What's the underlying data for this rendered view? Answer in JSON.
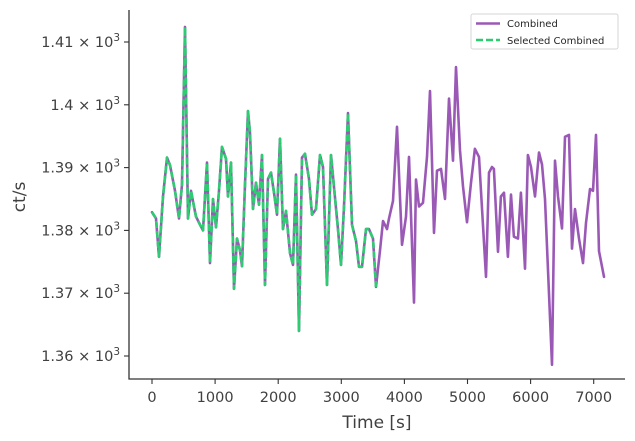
{
  "chart_data": {
    "type": "line",
    "title": "",
    "xlabel": "Time [s]",
    "ylabel": "ct/s",
    "xlim": [
      -370,
      7500
    ],
    "ylim": [
      1356.9,
      1415.6
    ],
    "yscale": "log",
    "grid": false,
    "legend_position": "upper right",
    "x_ticks": [
      0,
      1000,
      2000,
      3000,
      4000,
      5000,
      6000,
      7000
    ],
    "x_tick_labels": [
      "0",
      "1000",
      "2000",
      "3000",
      "4000",
      "5000",
      "6000",
      "7000"
    ],
    "y_ticks": [
      1360,
      1370,
      1380,
      1390,
      1400,
      1410
    ],
    "y_tick_labels": [
      {
        "mantissa": "1.36",
        "exp": "3"
      },
      {
        "mantissa": "1.37",
        "exp": "3"
      },
      {
        "mantissa": "1.38",
        "exp": "3"
      },
      {
        "mantissa": "1.39",
        "exp": "3"
      },
      {
        "mantissa": "1.4",
        "exp": "3"
      },
      {
        "mantissa": "1.41",
        "exp": "3"
      }
    ],
    "series": [
      {
        "name": "Combined",
        "color": "#9b59b6",
        "style": "solid",
        "x": [
          0,
          63,
          111,
          174,
          238,
          285,
          364,
          428,
          475,
          523,
          571,
          618,
          666,
          697,
          760,
          808,
          872,
          919,
          967,
          1014,
          1062,
          1109,
          1173,
          1204,
          1252,
          1300,
          1347,
          1395,
          1426,
          1474,
          1521,
          1553,
          1601,
          1648,
          1696,
          1743,
          1791,
          1838,
          1886,
          1933,
          1981,
          2029,
          2076,
          2124,
          2187,
          2235,
          2282,
          2330,
          2377,
          2425,
          2488,
          2536,
          2599,
          2662,
          2710,
          2773,
          2837,
          2884,
          2948,
          2995,
          3043,
          3106,
          3170,
          3233,
          3280,
          3328,
          3391,
          3439,
          3502,
          3550,
          3613,
          3661,
          3724,
          3756,
          3819,
          3883,
          3962,
          4025,
          4073,
          4152,
          4184,
          4231,
          4295,
          4358,
          4406,
          4469,
          4516,
          4580,
          4643,
          4707,
          4770,
          4818,
          4881,
          4929,
          4992,
          5055,
          5118,
          5182,
          5293,
          5340,
          5388,
          5419,
          5483,
          5530,
          5578,
          5641,
          5689,
          5736,
          5800,
          5847,
          5911,
          5958,
          6006,
          6069,
          6133,
          6180,
          6228,
          6339,
          6387,
          6434,
          6497,
          6545,
          6608,
          6656,
          6703,
          6767,
          6830,
          6878,
          6941,
          6989,
          7036,
          7084,
          7163
        ],
        "y": [
          1382.9,
          1381.9,
          1375.8,
          1385.4,
          1391.6,
          1390.4,
          1386.3,
          1381.9,
          1387.3,
          1412.4,
          1381.9,
          1386.3,
          1383.8,
          1382.2,
          1380.9,
          1380.0,
          1390.8,
          1374.8,
          1385.0,
          1380.5,
          1386.3,
          1393.3,
          1391.4,
          1385.4,
          1390.8,
          1370.7,
          1378.7,
          1376.8,
          1374.3,
          1387.3,
          1399.0,
          1395.5,
          1383.4,
          1387.6,
          1384.1,
          1392.0,
          1371.3,
          1388.2,
          1389.2,
          1386.0,
          1382.5,
          1394.6,
          1380.2,
          1383.1,
          1376.4,
          1374.5,
          1388.9,
          1364.0,
          1391.6,
          1392.2,
          1388.2,
          1382.5,
          1383.4,
          1392.0,
          1390.1,
          1371.3,
          1392.0,
          1386.9,
          1380.2,
          1374.5,
          1383.8,
          1398.7,
          1380.9,
          1378.3,
          1374.2,
          1374.2,
          1380.2,
          1380.2,
          1378.7,
          1371.0,
          1376.8,
          1381.5,
          1380.2,
          1381.9,
          1384.7,
          1396.5,
          1377.7,
          1382.2,
          1391.7,
          1368.5,
          1388.1,
          1383.8,
          1384.4,
          1391.7,
          1402.2,
          1379.6,
          1389.5,
          1389.8,
          1385.0,
          1401.0,
          1391.1,
          1406.0,
          1392.7,
          1387.0,
          1381.3,
          1387.6,
          1393.0,
          1391.7,
          1372.6,
          1389.2,
          1390.1,
          1389.8,
          1376.6,
          1385.4,
          1386.0,
          1375.8,
          1385.7,
          1379.0,
          1378.7,
          1386.0,
          1373.9,
          1392.0,
          1390.1,
          1385.4,
          1392.4,
          1390.5,
          1385.0,
          1358.6,
          1391.1,
          1385.4,
          1380.3,
          1394.9,
          1395.2,
          1377.1,
          1383.4,
          1378.7,
          1374.8,
          1381.2,
          1386.6,
          1386.3,
          1395.2,
          1376.7,
          1372.6
        ]
      },
      {
        "name": "Selected Combined",
        "color": "#2ecc71",
        "style": "dashed",
        "x_range": [
          0,
          3550
        ]
      }
    ]
  },
  "legend": {
    "items": [
      {
        "label": "Combined",
        "color": "#9b59b6",
        "style": "solid"
      },
      {
        "label": "Selected Combined",
        "color": "#2ecc71",
        "style": "dashed"
      }
    ]
  },
  "axes": {
    "xlabel": "Time [s]",
    "ylabel": "ct/s",
    "times_sign": "×",
    "base": "10"
  }
}
